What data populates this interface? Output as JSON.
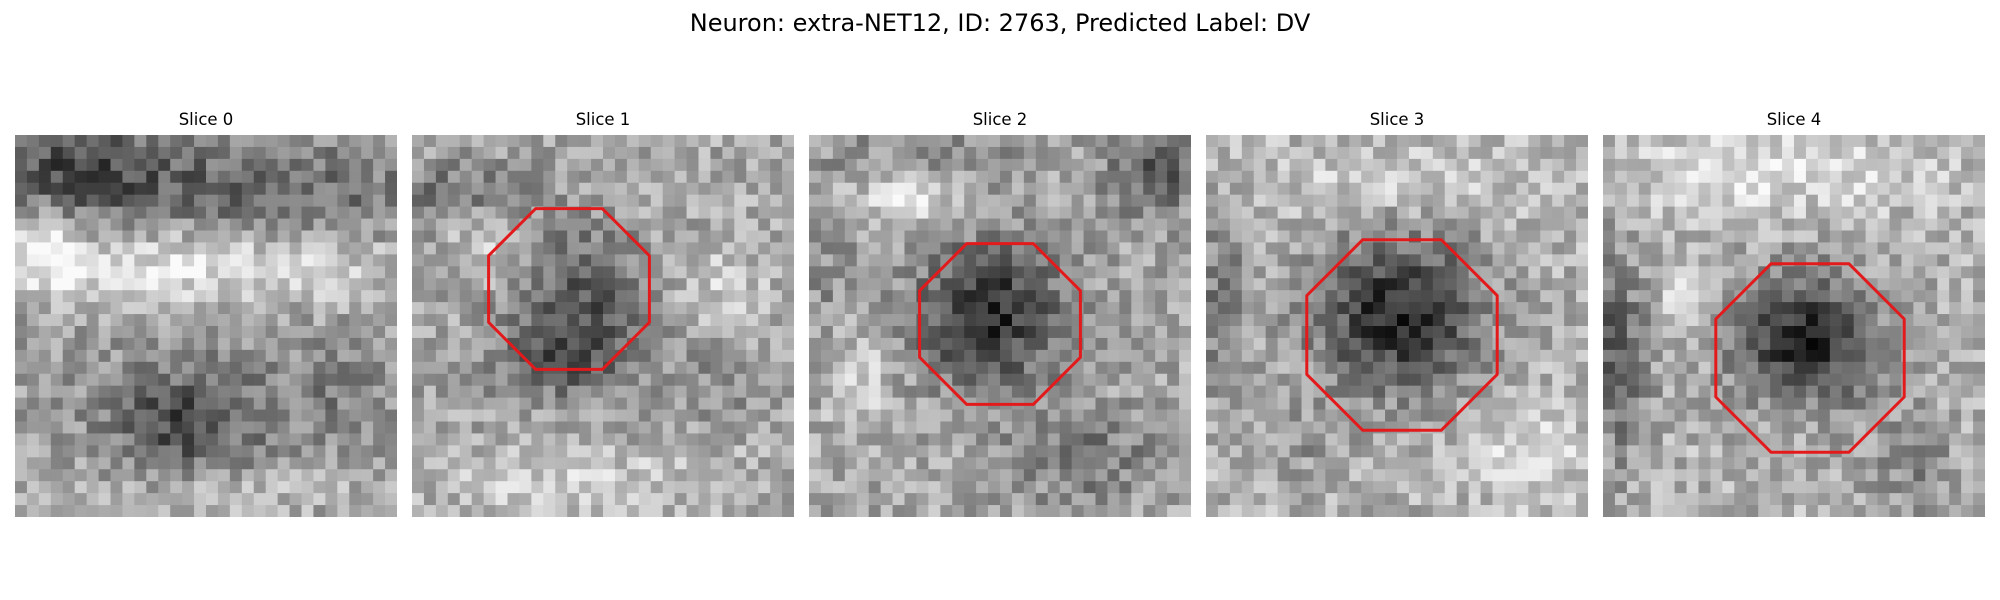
{
  "title": "Neuron: extra-NET12, ID: 2763, Predicted Label: DV",
  "colors": {
    "contour": "#e31a1c",
    "background": "#ffffff"
  },
  "panels": [
    {
      "label": "Slice 0",
      "contour": false
    },
    {
      "label": "Slice 1",
      "contour": true
    },
    {
      "label": "Slice 2",
      "contour": true
    },
    {
      "label": "Slice 3",
      "contour": true
    },
    {
      "label": "Slice 4",
      "contour": true
    }
  ]
}
